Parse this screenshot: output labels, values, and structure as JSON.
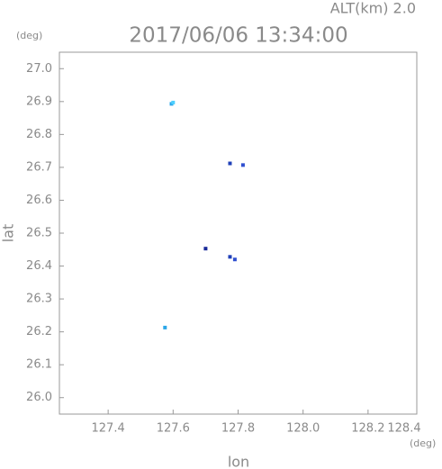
{
  "chart_data": {
    "type": "scatter",
    "title": "2017/06/06 13:34:00",
    "subtitle": "ALT(km) 2.0",
    "y_unit": "(deg)",
    "x_unit": "(deg)",
    "x_label": "lon",
    "y_label": "lat",
    "x": [
      127.595,
      127.6,
      127.775,
      127.815,
      127.7,
      127.775,
      127.79,
      127.575
    ],
    "values": [
      26.893,
      26.897,
      26.712,
      26.707,
      26.453,
      26.428,
      26.42,
      26.213
    ],
    "colors": [
      "#2aa6e8",
      "#4ccfff",
      "#2040b8",
      "#3050d0",
      "#1a2a99",
      "#2040b8",
      "#3050d0",
      "#2aa6e8"
    ],
    "xlim": [
      127.25,
      128.35
    ],
    "ylim": [
      25.95,
      27.05
    ],
    "xticks": [
      127.4,
      127.6,
      127.8,
      {
        "value": 128.0,
        "label": "128.0"
      },
      128.2,
      128.4
    ],
    "yticks": [
      {
        "value": 26.0,
        "label": "26.0"
      },
      26.1,
      26.2,
      26.3,
      26.4,
      26.5,
      26.6,
      26.7,
      26.8,
      26.9,
      {
        "value": 27.0,
        "label": "27.0"
      }
    ]
  }
}
